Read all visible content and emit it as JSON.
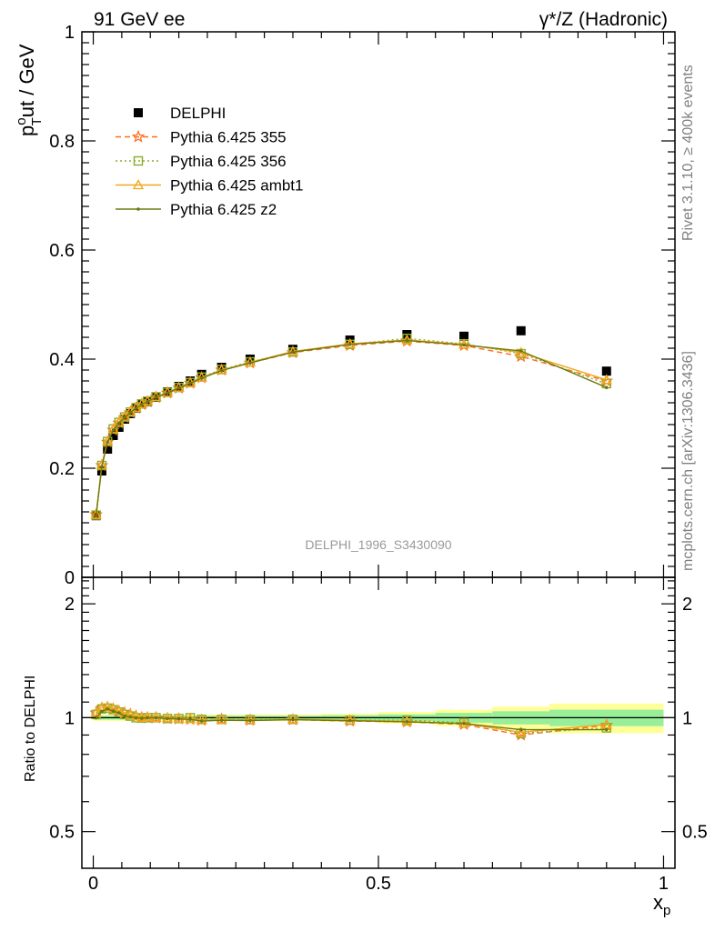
{
  "header": {
    "left_title": "91 GeV ee",
    "right_title": "γ*/Z (Hadronic)"
  },
  "side_labels": {
    "rivet": "Rivet 3.1.10, ≥ 400k events",
    "mcplots": "mcplots.cern.ch [arXiv:1306.3436]"
  },
  "watermark": "DELPHI_1996_S3430090",
  "chart_data": [
    {
      "type": "line",
      "panel": "main",
      "ylabel": "p_T^out / GeV",
      "xlabel": "x_p",
      "xlim": [
        -0.02,
        1.02
      ],
      "ylim": [
        0,
        1.0
      ],
      "yticks": [
        0,
        0.2,
        0.4,
        0.6,
        0.8,
        1
      ],
      "ytick_labels": [
        "0",
        "0.2",
        "0.4",
        "0.6",
        "0.8",
        "1"
      ],
      "legend_position": "top-left",
      "x": [
        0.005,
        0.015,
        0.025,
        0.035,
        0.045,
        0.055,
        0.065,
        0.075,
        0.085,
        0.095,
        0.11,
        0.13,
        0.15,
        0.17,
        0.19,
        0.225,
        0.275,
        0.35,
        0.45,
        0.55,
        0.65,
        0.75,
        0.9
      ],
      "series": [
        {
          "name": "DELPHI",
          "color": "#000000",
          "marker": "square",
          "values": [
            0.113,
            0.195,
            0.235,
            0.26,
            0.275,
            0.29,
            0.3,
            0.31,
            0.318,
            0.322,
            0.33,
            0.34,
            0.35,
            0.36,
            0.372,
            0.385,
            0.4,
            0.418,
            0.435,
            0.445,
            0.442,
            0.452,
            0.378
          ]
        },
        {
          "name": "Pythia 6.425 355",
          "color": "#ff6a1a",
          "marker": "star",
          "dash": "6,4",
          "values": [
            0.115,
            0.205,
            0.248,
            0.27,
            0.283,
            0.293,
            0.302,
            0.31,
            0.317,
            0.322,
            0.33,
            0.338,
            0.347,
            0.356,
            0.366,
            0.38,
            0.393,
            0.412,
            0.425,
            0.433,
            0.425,
            0.405,
            0.36
          ]
        },
        {
          "name": "Pythia 6.425 356",
          "color": "#8bad2b",
          "marker": "square-open",
          "dash": "2,3",
          "values": [
            0.114,
            0.205,
            0.249,
            0.272,
            0.284,
            0.294,
            0.303,
            0.311,
            0.318,
            0.323,
            0.331,
            0.339,
            0.348,
            0.357,
            0.367,
            0.381,
            0.395,
            0.413,
            0.427,
            0.438,
            0.428,
            0.41,
            0.355
          ]
        },
        {
          "name": "Pythia 6.425 ambt1",
          "color": "#f0a81c",
          "marker": "triangle-open",
          "dash": "",
          "values": [
            0.115,
            0.206,
            0.25,
            0.272,
            0.285,
            0.295,
            0.304,
            0.311,
            0.318,
            0.323,
            0.331,
            0.339,
            0.348,
            0.357,
            0.366,
            0.38,
            0.394,
            0.414,
            0.428,
            0.435,
            0.427,
            0.412,
            0.362
          ]
        },
        {
          "name": "Pythia 6.425 z2",
          "color": "#6b7a10",
          "marker": "dot",
          "dash": "",
          "values": [
            0.113,
            0.203,
            0.248,
            0.27,
            0.283,
            0.293,
            0.302,
            0.31,
            0.317,
            0.322,
            0.33,
            0.338,
            0.347,
            0.356,
            0.365,
            0.379,
            0.393,
            0.413,
            0.427,
            0.434,
            0.426,
            0.415,
            0.348
          ]
        }
      ]
    },
    {
      "type": "line",
      "panel": "ratio",
      "ylabel": "Ratio to DELPHI",
      "xlabel": "x_p",
      "xlim": [
        -0.02,
        1.02
      ],
      "ylim": [
        0.4,
        2.35
      ],
      "yscale": "log",
      "yticks": [
        0.5,
        1,
        2
      ],
      "ytick_labels": [
        "0.5",
        "1",
        "2"
      ],
      "xticks": [
        0,
        0.5,
        1
      ],
      "xtick_labels": [
        "0",
        "0.5",
        "1"
      ],
      "band_edges": [
        0.0,
        0.01,
        0.02,
        0.03,
        0.04,
        0.05,
        0.06,
        0.07,
        0.08,
        0.09,
        0.1,
        0.12,
        0.14,
        0.16,
        0.18,
        0.2,
        0.25,
        0.3,
        0.4,
        0.5,
        0.6,
        0.7,
        0.8,
        1.0
      ],
      "band_inner": [
        0.012,
        0.012,
        0.012,
        0.012,
        0.012,
        0.012,
        0.012,
        0.012,
        0.012,
        0.012,
        0.012,
        0.012,
        0.012,
        0.012,
        0.012,
        0.012,
        0.012,
        0.012,
        0.015,
        0.02,
        0.03,
        0.04,
        0.05
      ],
      "band_outer": [
        0.02,
        0.02,
        0.02,
        0.02,
        0.02,
        0.02,
        0.02,
        0.02,
        0.02,
        0.02,
        0.02,
        0.02,
        0.02,
        0.02,
        0.02,
        0.02,
        0.02,
        0.02,
        0.025,
        0.035,
        0.05,
        0.07,
        0.09
      ],
      "series": [
        {
          "name": "Pythia 6.425 355",
          "values": [
            1.03,
            1.06,
            1.065,
            1.055,
            1.04,
            1.03,
            1.02,
            1.01,
            1.0,
            1.0,
            1.0,
            0.995,
            0.993,
            0.99,
            0.985,
            0.99,
            0.985,
            0.988,
            0.98,
            0.975,
            0.96,
            0.9,
            0.955
          ]
        },
        {
          "name": "Pythia 6.425 356",
          "values": [
            1.02,
            1.055,
            1.06,
            1.05,
            1.035,
            1.02,
            1.01,
            1.0,
            0.998,
            1.0,
            1.0,
            0.995,
            0.995,
            1.0,
            0.99,
            0.99,
            0.988,
            0.99,
            0.985,
            0.985,
            0.97,
            0.91,
            0.94
          ]
        },
        {
          "name": "Pythia 6.425 ambt1",
          "values": [
            1.03,
            1.065,
            1.07,
            1.06,
            1.045,
            1.03,
            1.02,
            1.01,
            1.0,
            1.005,
            1.0,
            0.998,
            0.995,
            0.993,
            0.985,
            0.988,
            0.985,
            0.99,
            0.985,
            0.978,
            0.965,
            0.915,
            0.96
          ]
        },
        {
          "name": "Pythia 6.425 z2",
          "values": [
            1.0,
            1.04,
            1.055,
            1.04,
            1.03,
            1.01,
            1.005,
            1.0,
            0.997,
            1.0,
            1.0,
            0.995,
            0.992,
            0.99,
            0.98,
            0.985,
            0.983,
            0.988,
            0.982,
            0.975,
            0.965,
            0.93,
            0.93
          ]
        }
      ]
    }
  ]
}
